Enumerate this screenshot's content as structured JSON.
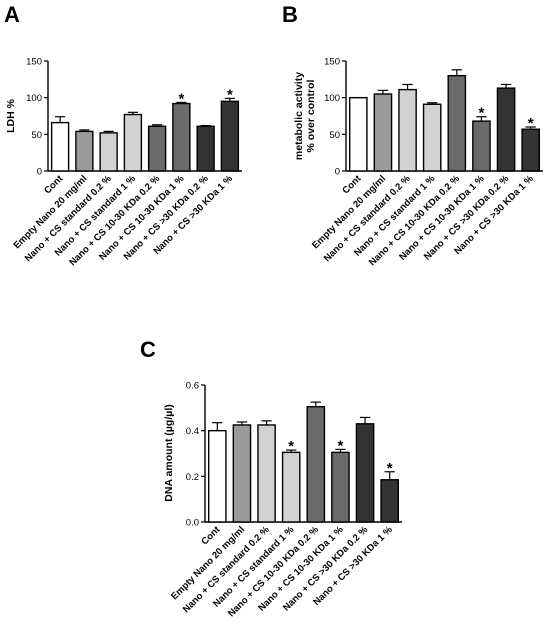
{
  "colors": {
    "bar_fills": [
      "#ffffff",
      "#9a9a9a",
      "#d2d2d2",
      "#d2d2d2",
      "#6a6a6a",
      "#6a6a6a",
      "#333333",
      "#333333"
    ],
    "stroke": "#000000"
  },
  "chart_data": [
    {
      "panel": "A",
      "type": "bar",
      "ylabel": "LDH %",
      "ylim": [
        0,
        150
      ],
      "yticks": [
        0,
        50,
        100,
        150
      ],
      "categories": [
        "Cont",
        "Empty Nano 20 mg/ml",
        "Nano + CS standard 0.2 %",
        "Nano + CS standard 1 %",
        "Nano + CS 10-30 KDa 0.2 %",
        "Nano + CS 10-30 KDa 1 %",
        "Nano + CS >30 KDa 0.2 %",
        "Nano + CS >30 KDa 1 %"
      ],
      "values": [
        66,
        54,
        52,
        77,
        61,
        92,
        61,
        95
      ],
      "errors": [
        8,
        2,
        2,
        3,
        2,
        1.5,
        1,
        4
      ],
      "significance": [
        "",
        "",
        "",
        "",
        "",
        "*",
        "",
        "*"
      ]
    },
    {
      "panel": "B",
      "type": "bar",
      "ylabel": "metabolic activity\n% over control",
      "ylim": [
        0,
        150
      ],
      "yticks": [
        0,
        50,
        100,
        150
      ],
      "categories": [
        "Cont",
        "Empty Nano 20 mg/ml",
        "Nano + CS standard 0.2 %",
        "Nano + CS standard 1 %",
        "Nano + CS 10-30 KDa 0.2 %",
        "Nano + CS 10-30 KDa 1 %",
        "Nano + CS >30 KDa 0.2 %",
        "Nano + CS >30 KDa 1 %"
      ],
      "values": [
        100,
        105,
        111,
        91,
        130,
        68,
        113,
        57
      ],
      "errors": [
        0,
        5,
        7,
        2,
        8,
        6,
        5,
        3
      ],
      "significance": [
        "",
        "",
        "",
        "",
        "",
        "*",
        "",
        "*"
      ]
    },
    {
      "panel": "C",
      "type": "bar",
      "ylabel": "DNA amount (µg/µl)",
      "ylim": [
        0,
        0.6
      ],
      "yticks": [
        "0.0",
        "0.2",
        "0.4",
        "0.6"
      ],
      "categories": [
        "Cont",
        "Empty Nano 20 mg/ml",
        "Nano + CS standard 0.2 %",
        "Nano + CS standard 1 %",
        "Nano + CS 10-30 KDa 0.2 %",
        "Nano + CS 10-30 KDa 1 %",
        "Nano + CS >30 KDa 0.2 %",
        "Nano + CS >30 KDa 1 %"
      ],
      "values": [
        0.4,
        0.425,
        0.425,
        0.305,
        0.505,
        0.305,
        0.43,
        0.185
      ],
      "errors": [
        0.035,
        0.013,
        0.018,
        0.01,
        0.02,
        0.013,
        0.028,
        0.035
      ],
      "significance": [
        "",
        "",
        "",
        "*",
        "",
        "*",
        "",
        "*"
      ]
    }
  ]
}
